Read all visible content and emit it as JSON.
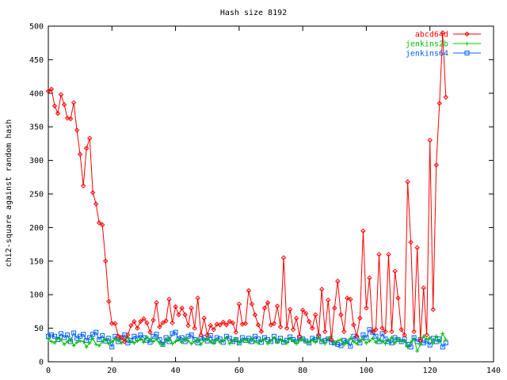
{
  "chart_data": {
    "type": "line",
    "title": "Hash size 8192",
    "xlabel": "",
    "ylabel": "chi2-square against random hash",
    "xlim": [
      0,
      140
    ],
    "ylim": [
      0,
      500
    ],
    "xticks": [
      0,
      20,
      40,
      60,
      80,
      100,
      120,
      140
    ],
    "yticks": [
      0,
      50,
      100,
      150,
      200,
      250,
      300,
      350,
      400,
      450,
      500
    ],
    "grid": false,
    "legend_position": "top-right",
    "series": [
      {
        "name": "abcd64d",
        "color": "#ff0000",
        "marker": "diamond",
        "x": [
          0,
          1,
          2,
          3,
          4,
          5,
          6,
          7,
          8,
          9,
          10,
          11,
          12,
          13,
          14,
          15,
          16,
          17,
          18,
          19,
          20,
          21,
          22,
          23,
          24,
          25,
          26,
          27,
          28,
          29,
          30,
          31,
          32,
          33,
          34,
          35,
          36,
          37,
          38,
          39,
          40,
          41,
          42,
          43,
          44,
          45,
          46,
          47,
          48,
          49,
          50,
          51,
          52,
          53,
          54,
          55,
          56,
          57,
          58,
          59,
          60,
          61,
          62,
          63,
          64,
          65,
          66,
          67,
          68,
          69,
          70,
          71,
          72,
          73,
          74,
          75,
          76,
          77,
          78,
          79,
          80,
          81,
          82,
          83,
          84,
          85,
          86,
          87,
          88,
          89,
          90,
          91,
          92,
          93,
          94,
          95,
          96,
          97,
          98,
          99,
          100,
          101,
          102,
          103,
          104,
          105,
          106,
          107,
          108,
          109,
          110,
          111,
          112,
          113,
          114,
          115,
          116,
          117,
          118,
          119,
          120,
          121,
          122,
          123,
          124,
          125
        ],
        "y": [
          403,
          406,
          381,
          370,
          398,
          383,
          363,
          362,
          386,
          345,
          309,
          262,
          318,
          333,
          252,
          235,
          207,
          204,
          150,
          90,
          57,
          57,
          38,
          36,
          30,
          40,
          54,
          60,
          50,
          60,
          64,
          58,
          44,
          62,
          88,
          52,
          58,
          61,
          93,
          58,
          82,
          70,
          80,
          70,
          54,
          80,
          50,
          95,
          40,
          65,
          40,
          54,
          48,
          56,
          55,
          59,
          55,
          60,
          58,
          44,
          86,
          56,
          57,
          106,
          86,
          70,
          55,
          45,
          80,
          88,
          55,
          57,
          83,
          52,
          155,
          50,
          78,
          48,
          65,
          38,
          77,
          72,
          60,
          50,
          70,
          40,
          108,
          45,
          92,
          33,
          80,
          120,
          70,
          45,
          95,
          93,
          55,
          38,
          65,
          195,
          80,
          125,
          45,
          48,
          160,
          50,
          45,
          160,
          45,
          135,
          95,
          48,
          40,
          268,
          178,
          45,
          170,
          32,
          110,
          40,
          330,
          78,
          293,
          385,
          490,
          394
        ]
      },
      {
        "name": "jenkins2b",
        "color": "#00c000",
        "marker": "plus",
        "x": [
          0,
          1,
          2,
          3,
          4,
          5,
          6,
          7,
          8,
          9,
          10,
          11,
          12,
          13,
          14,
          15,
          16,
          17,
          18,
          19,
          20,
          21,
          22,
          23,
          24,
          25,
          26,
          27,
          28,
          29,
          30,
          31,
          32,
          33,
          34,
          35,
          36,
          37,
          38,
          39,
          40,
          41,
          42,
          43,
          44,
          45,
          46,
          47,
          48,
          49,
          50,
          51,
          52,
          53,
          54,
          55,
          56,
          57,
          58,
          59,
          60,
          61,
          62,
          63,
          64,
          65,
          66,
          67,
          68,
          69,
          70,
          71,
          72,
          73,
          74,
          75,
          76,
          77,
          78,
          79,
          80,
          81,
          82,
          83,
          84,
          85,
          86,
          87,
          88,
          89,
          90,
          91,
          92,
          93,
          94,
          95,
          96,
          97,
          98,
          99,
          100,
          101,
          102,
          103,
          104,
          105,
          106,
          107,
          108,
          109,
          110,
          111,
          112,
          113,
          114,
          115,
          116,
          117,
          118,
          119,
          120,
          121,
          122,
          123,
          124,
          125
        ],
        "y": [
          34,
          30,
          28,
          35,
          33,
          26,
          30,
          34,
          24,
          29,
          31,
          30,
          22,
          28,
          35,
          26,
          24,
          30,
          33,
          27,
          30,
          34,
          32,
          28,
          33,
          36,
          30,
          28,
          31,
          34,
          29,
          37,
          33,
          30,
          34,
          28,
          25,
          31,
          36,
          27,
          30,
          33,
          29,
          35,
          31,
          27,
          30,
          34,
          26,
          32,
          35,
          30,
          28,
          33,
          29,
          31,
          36,
          27,
          30,
          34,
          28,
          31,
          33,
          29,
          35,
          30,
          28,
          32,
          34,
          27,
          31,
          36,
          29,
          33,
          30,
          28,
          35,
          31,
          27,
          32,
          34,
          30,
          28,
          33,
          29,
          36,
          31,
          27,
          34,
          38,
          28,
          31,
          33,
          26,
          29,
          35,
          30,
          27,
          32,
          34,
          28,
          31,
          35,
          29,
          33,
          30,
          27,
          32,
          36,
          28,
          34,
          30,
          31,
          22,
          29,
          35,
          16,
          26,
          38,
          33,
          36,
          28,
          38,
          30,
          42,
          33
        ]
      },
      {
        "name": "jenkins64",
        "color": "#0060ff",
        "marker": "square",
        "x": [
          0,
          1,
          2,
          3,
          4,
          5,
          6,
          7,
          8,
          9,
          10,
          11,
          12,
          13,
          14,
          15,
          16,
          17,
          18,
          19,
          20,
          21,
          22,
          23,
          24,
          25,
          26,
          27,
          28,
          29,
          30,
          31,
          32,
          33,
          34,
          35,
          36,
          37,
          38,
          39,
          40,
          41,
          42,
          43,
          44,
          45,
          46,
          47,
          48,
          49,
          50,
          51,
          52,
          53,
          54,
          55,
          56,
          57,
          58,
          59,
          60,
          61,
          62,
          63,
          64,
          65,
          66,
          67,
          68,
          69,
          70,
          71,
          72,
          73,
          74,
          75,
          76,
          77,
          78,
          79,
          80,
          81,
          82,
          83,
          84,
          85,
          86,
          87,
          88,
          89,
          90,
          91,
          92,
          93,
          94,
          95,
          96,
          97,
          98,
          99,
          100,
          101,
          102,
          103,
          104,
          105,
          106,
          107,
          108,
          109,
          110,
          111,
          112,
          113,
          114,
          115,
          116,
          117,
          118,
          119,
          120,
          121,
          122,
          123,
          124,
          125
        ],
        "y": [
          38,
          40,
          38,
          33,
          42,
          36,
          40,
          30,
          43,
          35,
          38,
          41,
          32,
          36,
          41,
          44,
          33,
          39,
          31,
          35,
          22,
          38,
          30,
          36,
          40,
          28,
          32,
          38,
          35,
          40,
          36,
          32,
          29,
          38,
          41,
          33,
          26,
          36,
          30,
          42,
          44,
          34,
          36,
          30,
          38,
          40,
          33,
          28,
          35,
          36,
          31,
          39,
          30,
          36,
          34,
          29,
          38,
          35,
          30,
          33,
          28,
          36,
          32,
          35,
          30,
          38,
          34,
          29,
          36,
          33,
          30,
          38,
          31,
          35,
          29,
          32,
          37,
          33,
          30,
          36,
          34,
          31,
          28,
          35,
          33,
          37,
          30,
          32,
          34,
          29,
          28,
          26,
          24,
          32,
          30,
          23,
          38,
          35,
          28,
          40,
          36,
          48,
          44,
          38,
          30,
          42,
          34,
          30,
          28,
          36,
          33,
          30,
          34,
          26,
          22,
          36,
          30,
          33,
          28,
          31,
          25,
          35,
          30,
          34,
          22,
          28
        ]
      }
    ]
  }
}
